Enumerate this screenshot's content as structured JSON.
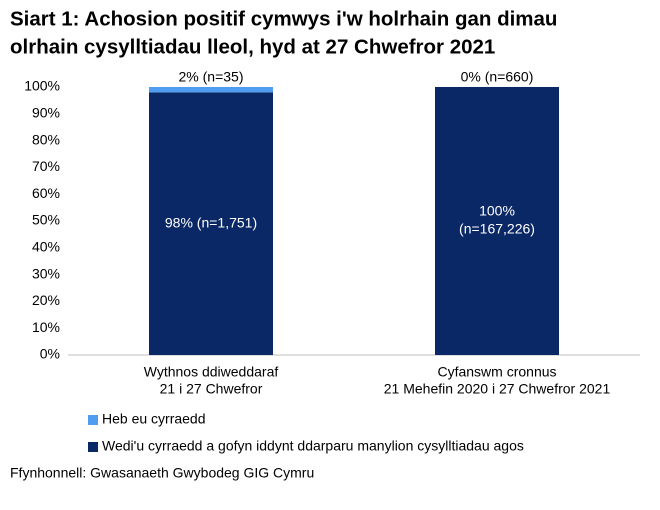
{
  "chart_data": {
    "type": "stacked_bar",
    "title": [
      "Siart 1: Achosion positif cymwys i'w holrhain gan dimau",
      "olrhain cysylltiadau lleol, hyd at 27 Chwefror 2021"
    ],
    "categories": [
      [
        "Wythnos ddiweddaraf",
        "21 i 27 Chwefror"
      ],
      [
        "Cyfanswm cronnus",
        "21 Mehefin 2020 i 27 Chwefror 2021"
      ]
    ],
    "series": [
      {
        "name": "Wedi'u cyrraedd a gofyn iddynt ddarparu manylion cysylltiadau agos",
        "color": "#0b2866",
        "values": [
          98,
          100
        ],
        "value_labels": [
          [
            "98% (n=1,751)"
          ],
          [
            "100%",
            "(n=167,226)"
          ]
        ],
        "label_position": "center"
      },
      {
        "name": "Heb eu cyrraedd",
        "color": "#4f9cf0",
        "values": [
          2,
          0
        ],
        "value_labels": [
          [
            "2% (n=35)"
          ],
          [
            "0% (n=660)"
          ]
        ],
        "label_position": "above"
      }
    ],
    "ylim": [
      0,
      100
    ],
    "yticks": [
      {
        "value": 0,
        "label": "0%"
      },
      {
        "value": 10,
        "label": "10%"
      },
      {
        "value": 20,
        "label": "20%"
      },
      {
        "value": 30,
        "label": "30%"
      },
      {
        "value": 40,
        "label": "40%"
      },
      {
        "value": 50,
        "label": "50%"
      },
      {
        "value": 60,
        "label": "60%"
      },
      {
        "value": 70,
        "label": "70%"
      },
      {
        "value": 80,
        "label": "80%"
      },
      {
        "value": 90,
        "label": "90%"
      },
      {
        "value": 100,
        "label": "100%"
      }
    ],
    "grid": false,
    "legend": "bottom",
    "source": "Ffynhonnell: Gwasanaeth Gwybodeg GIG Cymru"
  }
}
